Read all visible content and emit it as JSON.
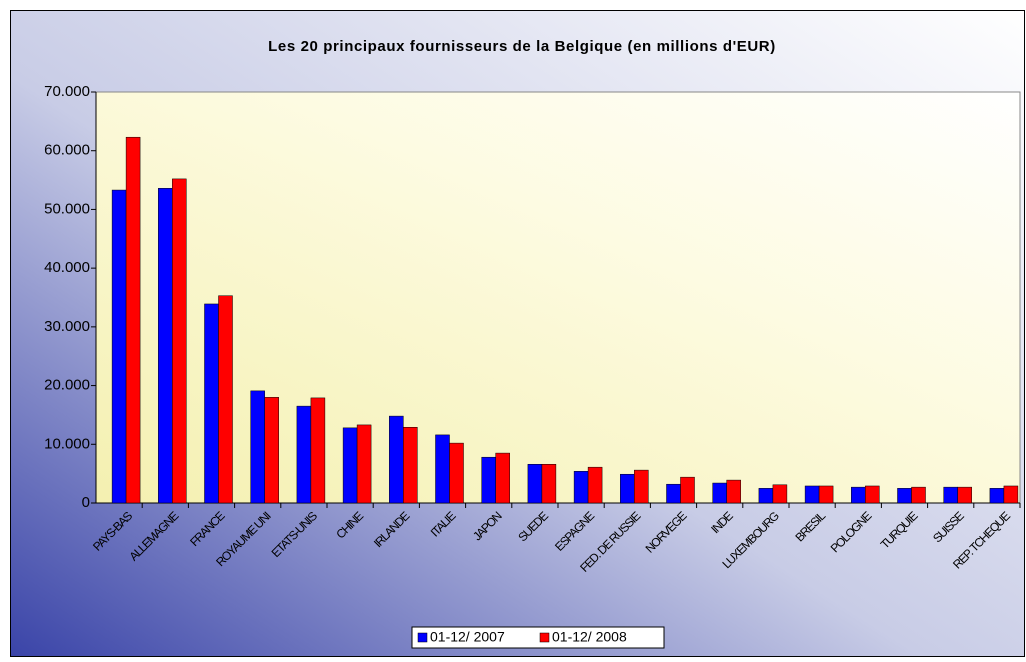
{
  "chart_data": {
    "type": "bar",
    "title": "Les 20 principaux fournisseurs de la Belgique (en millions d'EUR)",
    "categories": [
      "PAYS-BAS",
      "ALLEMAGNE",
      "FRANCE",
      "ROYAUME UNI",
      "ETATS-UNIS",
      "CHINE",
      "IRLANDE",
      "ITALIE",
      "JAPON",
      "SUEDE",
      "ESPAGNE",
      "FED. DE RUSSIE",
      "NORVEGE",
      "INDE",
      "LUXEMBOURG",
      "BRESIL",
      "POLOGNE",
      "TURQUIE",
      "SUISSE",
      "REP. TCHEQUE"
    ],
    "series": [
      {
        "name": "01-12/ 2007",
        "color": "#0000ff",
        "values": [
          53300,
          53600,
          33900,
          19100,
          16500,
          12800,
          14800,
          11600,
          7800,
          6600,
          5400,
          4900,
          3200,
          3400,
          2500,
          2900,
          2700,
          2500,
          2700,
          2500
        ]
      },
      {
        "name": "01-12/ 2008",
        "color": "#ff0000",
        "values": [
          62300,
          55200,
          35300,
          18000,
          17900,
          13300,
          12900,
          10200,
          8500,
          6600,
          6100,
          5600,
          4400,
          3900,
          3100,
          2900,
          2900,
          2700,
          2700,
          2900
        ]
      }
    ],
    "ylim": [
      0,
      70000
    ],
    "yticks": [
      0,
      {
        "value": 10000,
        "label": "10.000"
      },
      {
        "value": 20000,
        "label": "20.000"
      },
      {
        "value": 30000,
        "label": "30.000"
      },
      {
        "value": 40000,
        "label": "40.000"
      },
      {
        "value": 50000,
        "label": "50.000"
      },
      {
        "value": 60000,
        "label": "60.000"
      },
      {
        "value": 70000,
        "label": "70.000"
      }
    ],
    "legend": "bottom"
  }
}
